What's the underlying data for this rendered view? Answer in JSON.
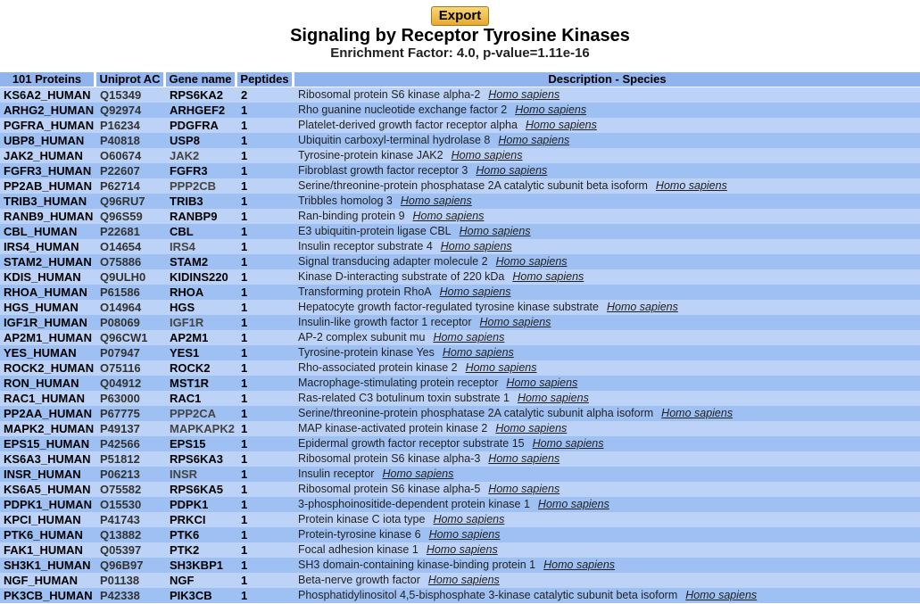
{
  "export_label": "Export",
  "title": "Signaling by Receptor Tyrosine Kinases",
  "subtitle": "Enrichment Factor: 4.0, p-value=1.11e-16",
  "columns": {
    "proteins": "101 Proteins",
    "uniprot": "Uniprot AC",
    "gene": "Gene name",
    "peptides": "Peptides",
    "description": "Description - Species"
  },
  "rows": [
    {
      "protein": "KS6A2_HUMAN",
      "ac": "Q15349",
      "gene": "RPS6KA2",
      "peptides": "2",
      "desc": "Ribosomal protein S6 kinase alpha-2",
      "species": "Homo sapiens"
    },
    {
      "protein": "ARHG2_HUMAN",
      "ac": "Q92974",
      "gene": "ARHGEF2",
      "peptides": "1",
      "desc": "Rho guanine nucleotide exchange factor 2",
      "species": "Homo sapiens"
    },
    {
      "protein": "PGFRA_HUMAN",
      "ac": "P16234",
      "gene": "PDGFRA",
      "peptides": "1",
      "desc": "Platelet-derived growth factor receptor alpha",
      "species": "Homo sapiens"
    },
    {
      "protein": "UBP8_HUMAN",
      "ac": "P40818",
      "gene": "USP8",
      "peptides": "1",
      "desc": "Ubiquitin carboxyl-terminal hydrolase 8",
      "species": "Homo sapiens"
    },
    {
      "protein": "JAK2_HUMAN",
      "ac": "O60674",
      "gene": "JAK2",
      "peptides": "1",
      "desc": "Tyrosine-protein kinase JAK2",
      "species": "Homo sapiens"
    },
    {
      "protein": "FGFR3_HUMAN",
      "ac": "P22607",
      "gene": "FGFR3",
      "peptides": "1",
      "desc": "Fibroblast growth factor receptor 3",
      "species": "Homo sapiens"
    },
    {
      "protein": "PP2AB_HUMAN",
      "ac": "P62714",
      "gene": "PPP2CB",
      "peptides": "1",
      "desc": "Serine/threonine-protein phosphatase 2A catalytic subunit beta isoform",
      "species": "Homo sapiens"
    },
    {
      "protein": "TRIB3_HUMAN",
      "ac": "Q96RU7",
      "gene": "TRIB3",
      "peptides": "1",
      "desc": "Tribbles homolog 3",
      "species": "Homo sapiens"
    },
    {
      "protein": "RANB9_HUMAN",
      "ac": "Q96S59",
      "gene": "RANBP9",
      "peptides": "1",
      "desc": "Ran-binding protein 9",
      "species": "Homo sapiens"
    },
    {
      "protein": "CBL_HUMAN",
      "ac": "P22681",
      "gene": "CBL",
      "peptides": "1",
      "desc": "E3 ubiquitin-protein ligase CBL",
      "species": "Homo sapiens"
    },
    {
      "protein": "IRS4_HUMAN",
      "ac": "O14654",
      "gene": "IRS4",
      "peptides": "1",
      "desc": "Insulin receptor substrate 4",
      "species": "Homo sapiens"
    },
    {
      "protein": "STAM2_HUMAN",
      "ac": "O75886",
      "gene": "STAM2",
      "peptides": "1",
      "desc": "Signal transducing adapter molecule 2",
      "species": "Homo sapiens"
    },
    {
      "protein": "KDIS_HUMAN",
      "ac": "Q9ULH0",
      "gene": "KIDINS220",
      "peptides": "1",
      "desc": "Kinase D-interacting substrate of 220 kDa",
      "species": "Homo sapiens"
    },
    {
      "protein": "RHOA_HUMAN",
      "ac": "P61586",
      "gene": "RHOA",
      "peptides": "1",
      "desc": "Transforming protein RhoA",
      "species": "Homo sapiens"
    },
    {
      "protein": "HGS_HUMAN",
      "ac": "O14964",
      "gene": "HGS",
      "peptides": "1",
      "desc": "Hepatocyte growth factor-regulated tyrosine kinase substrate",
      "species": "Homo sapiens"
    },
    {
      "protein": "IGF1R_HUMAN",
      "ac": "P08069",
      "gene": "IGF1R",
      "peptides": "1",
      "desc": "Insulin-like growth factor 1 receptor",
      "species": "Homo sapiens"
    },
    {
      "protein": "AP2M1_HUMAN",
      "ac": "Q96CW1",
      "gene": "AP2M1",
      "peptides": "1",
      "desc": "AP-2 complex subunit mu",
      "species": "Homo sapiens"
    },
    {
      "protein": "YES_HUMAN",
      "ac": "P07947",
      "gene": "YES1",
      "peptides": "1",
      "desc": "Tyrosine-protein kinase Yes",
      "species": "Homo sapiens"
    },
    {
      "protein": "ROCK2_HUMAN",
      "ac": "O75116",
      "gene": "ROCK2",
      "peptides": "1",
      "desc": "Rho-associated protein kinase 2",
      "species": "Homo sapiens"
    },
    {
      "protein": "RON_HUMAN",
      "ac": "Q04912",
      "gene": "MST1R",
      "peptides": "1",
      "desc": "Macrophage-stimulating protein receptor",
      "species": "Homo sapiens"
    },
    {
      "protein": "RAC1_HUMAN",
      "ac": "P63000",
      "gene": "RAC1",
      "peptides": "1",
      "desc": "Ras-related C3 botulinum toxin substrate 1",
      "species": "Homo sapiens"
    },
    {
      "protein": "PP2AA_HUMAN",
      "ac": "P67775",
      "gene": "PPP2CA",
      "peptides": "1",
      "desc": "Serine/threonine-protein phosphatase 2A catalytic subunit alpha isoform",
      "species": "Homo sapiens"
    },
    {
      "protein": "MAPK2_HUMAN",
      "ac": "P49137",
      "gene": "MAPKAPK2",
      "peptides": "1",
      "desc": "MAP kinase-activated protein kinase 2",
      "species": "Homo sapiens"
    },
    {
      "protein": "EPS15_HUMAN",
      "ac": "P42566",
      "gene": "EPS15",
      "peptides": "1",
      "desc": "Epidermal growth factor receptor substrate 15",
      "species": "Homo sapiens"
    },
    {
      "protein": "KS6A3_HUMAN",
      "ac": "P51812",
      "gene": "RPS6KA3",
      "peptides": "1",
      "desc": "Ribosomal protein S6 kinase alpha-3",
      "species": "Homo sapiens"
    },
    {
      "protein": "INSR_HUMAN",
      "ac": "P06213",
      "gene": "INSR",
      "peptides": "1",
      "desc": "Insulin receptor",
      "species": "Homo sapiens"
    },
    {
      "protein": "KS6A5_HUMAN",
      "ac": "O75582",
      "gene": "RPS6KA5",
      "peptides": "1",
      "desc": "Ribosomal protein S6 kinase alpha-5",
      "species": "Homo sapiens"
    },
    {
      "protein": "PDPK1_HUMAN",
      "ac": "O15530",
      "gene": "PDPK1",
      "peptides": "1",
      "desc": "3-phosphoinositide-dependent protein kinase 1",
      "species": "Homo sapiens"
    },
    {
      "protein": "KPCI_HUMAN",
      "ac": "P41743",
      "gene": "PRKCI",
      "peptides": "1",
      "desc": "Protein kinase C iota type",
      "species": "Homo sapiens"
    },
    {
      "protein": "PTK6_HUMAN",
      "ac": "Q13882",
      "gene": "PTK6",
      "peptides": "1",
      "desc": "Protein-tyrosine kinase 6",
      "species": "Homo sapiens"
    },
    {
      "protein": "FAK1_HUMAN",
      "ac": "Q05397",
      "gene": "PTK2",
      "peptides": "1",
      "desc": "Focal adhesion kinase 1",
      "species": "Homo sapiens"
    },
    {
      "protein": "SH3K1_HUMAN",
      "ac": "Q96B97",
      "gene": "SH3KBP1",
      "peptides": "1",
      "desc": "SH3 domain-containing kinase-binding protein 1",
      "species": "Homo sapiens"
    },
    {
      "protein": "NGF_HUMAN",
      "ac": "P01138",
      "gene": "NGF",
      "peptides": "1",
      "desc": "Beta-nerve growth factor",
      "species": "Homo sapiens"
    },
    {
      "protein": "PK3CB_HUMAN",
      "ac": "P42338",
      "gene": "PIK3CB",
      "peptides": "1",
      "desc": "Phosphatidylinositol 4,5-bisphosphate 3-kinase catalytic subunit beta isoform",
      "species": "Homo sapiens"
    }
  ]
}
